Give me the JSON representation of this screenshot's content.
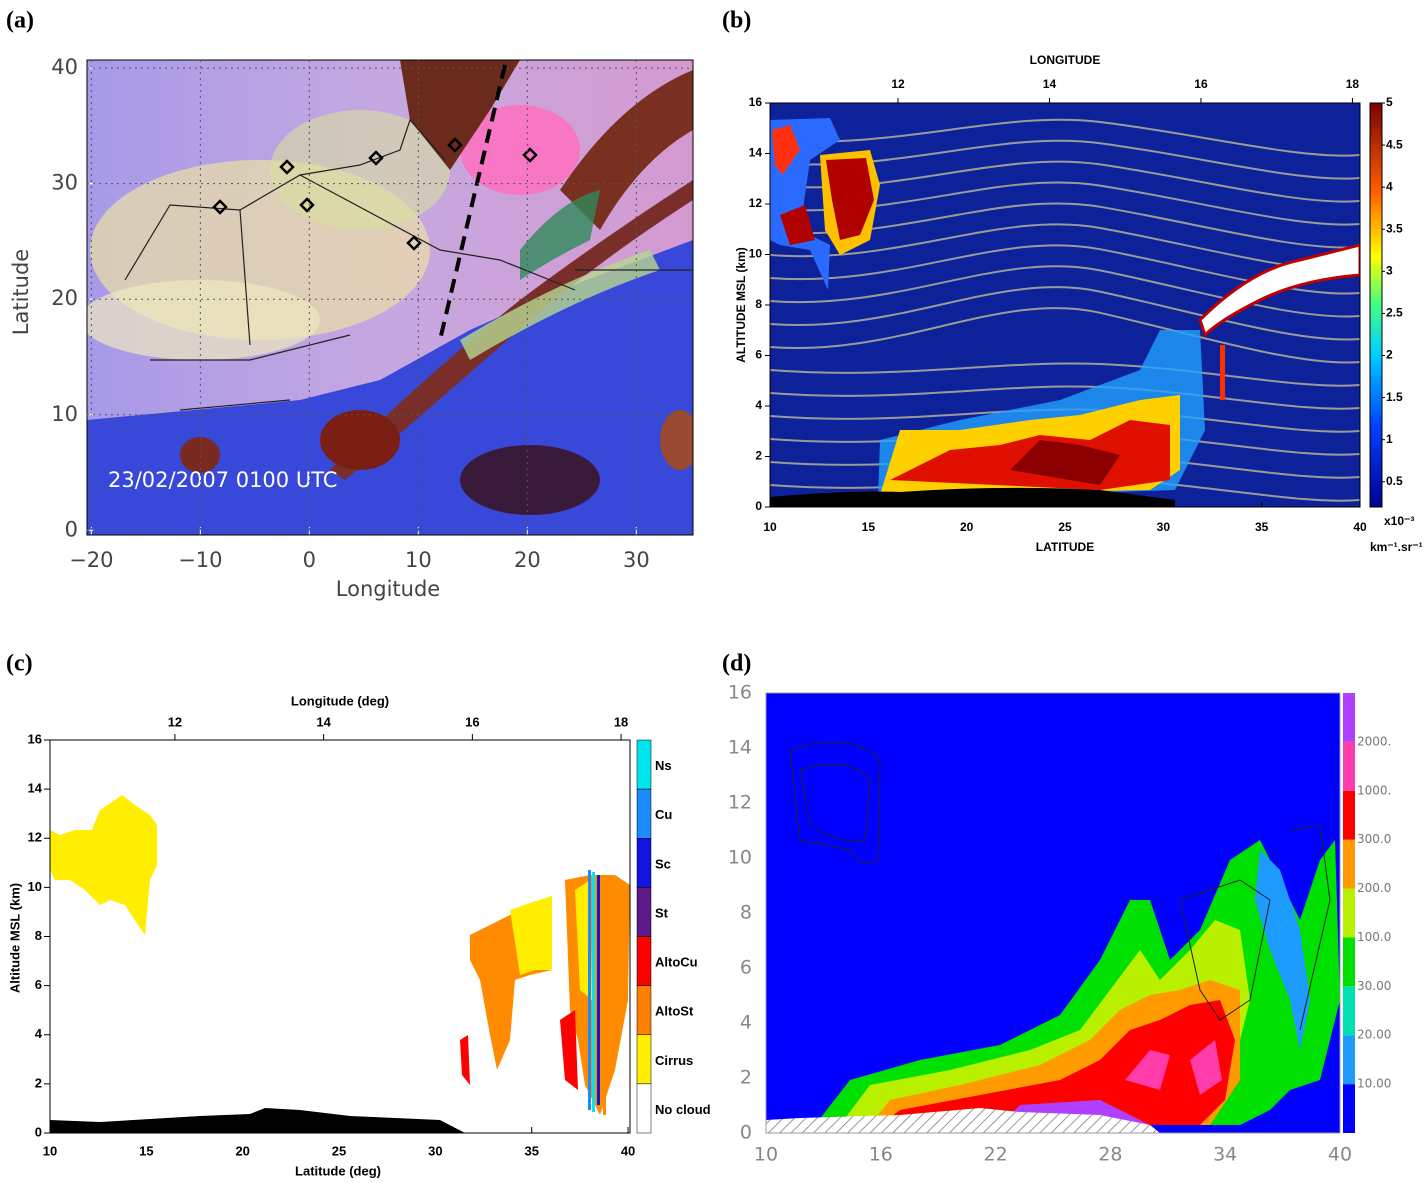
{
  "panels": [
    {
      "label": "(a)",
      "x_label": "Longitude",
      "y_label": "Latitude",
      "annotation": "23/02/2007   0100 UTC",
      "xlim": [
        -20.4,
        35.2
      ],
      "ylim": [
        -0.4,
        40.7
      ],
      "xticks": [
        {
          "value": -20,
          "label": "−20"
        },
        {
          "value": -10,
          "label": "−10"
        },
        0,
        10,
        20,
        30
      ],
      "yticks": [
        0,
        10,
        20,
        30,
        40
      ]
    },
    {
      "label": "(b)",
      "top_label": "LONGITUDE",
      "x_label": "LATITUDE",
      "y_label": "ALTITUDE  MSL (km)",
      "top_lim": [
        10.31,
        18.1
      ],
      "top_ticks": [
        12,
        14,
        16,
        18
      ],
      "xlim": [
        10,
        40
      ],
      "xticks": [
        10,
        15,
        20,
        25,
        30,
        35,
        40
      ],
      "ylim": [
        0,
        16
      ],
      "yticks": [
        0,
        2,
        4,
        6,
        8,
        10,
        12,
        14,
        16
      ],
      "colorbar_lim": [
        0.2,
        5
      ],
      "colorbar_ticks": [
        0.5,
        1,
        1.5,
        2,
        2.5,
        3,
        3.5,
        4,
        4.5,
        5
      ],
      "colorbar_unit": "x10⁻³",
      "colorbar_unit2": "km⁻¹.sr⁻¹"
    },
    {
      "label": "(c)",
      "top_label": "Longitude (deg)",
      "x_label": "Latitude (deg)",
      "y_label": "Altitude MSL (km)",
      "top_lim": [
        10.32,
        18.12
      ],
      "top_ticks": [
        12,
        14,
        16,
        18
      ],
      "xlim": [
        10,
        40.1
      ],
      "xticks": [
        10,
        15,
        20,
        25,
        30,
        35,
        40
      ],
      "ylim": [
        0,
        16
      ],
      "yticks": [
        0,
        2,
        4,
        6,
        8,
        10,
        12,
        14,
        16
      ],
      "classes": [
        {
          "name": "Ns",
          "color": "#00e6ee"
        },
        {
          "name": "Cu",
          "color": "#1a8cff"
        },
        {
          "name": "Sc",
          "color": "#1414e0"
        },
        {
          "name": "St",
          "color": "#5c1a8c"
        },
        {
          "name": "AltoCu",
          "color": "#ff0000"
        },
        {
          "name": "AltoSt",
          "color": "#ff8000"
        },
        {
          "name": "Cirrus",
          "color": "#ffee00"
        },
        {
          "name": "No cloud",
          "color": "#ffffff"
        }
      ]
    },
    {
      "label": "(d)",
      "xlim": [
        10,
        40
      ],
      "xticks": [
        10,
        16,
        22,
        28,
        34,
        40
      ],
      "ylim": [
        0,
        16
      ],
      "yticks": [
        0,
        2,
        4,
        6,
        8,
        10,
        12,
        14,
        16
      ],
      "colorbar_colors": [
        "#0000ff",
        "#1e9bff",
        "#00e0b0",
        "#00e000",
        "#b8f000",
        "#ff9a00",
        "#ff0000",
        "#ff3caa",
        "#b040ff"
      ],
      "colorbar_labels": [
        "10.00",
        "20.00",
        "30.00",
        "100.0",
        "200.0",
        "300.0",
        "1000.",
        "2000."
      ]
    }
  ]
}
